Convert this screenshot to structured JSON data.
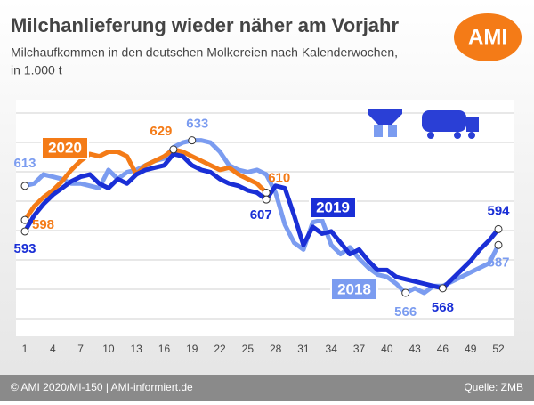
{
  "chart_data": {
    "type": "line",
    "title": "Milchanlieferung wieder näher am Vorjahr",
    "subtitle_lines": [
      "Milchaufkommen in den deutschen Molkereien nach Kalenderwochen,",
      "in 1.000 t"
    ],
    "logo": "AMI",
    "footer_left": "© AMI 2020/MI-150 | AMI-informiert.de",
    "footer_right": "Quelle: ZMB",
    "x": [
      1,
      2,
      3,
      4,
      5,
      6,
      7,
      8,
      9,
      10,
      11,
      12,
      13,
      14,
      15,
      16,
      17,
      18,
      19,
      20,
      21,
      22,
      23,
      24,
      25,
      26,
      27,
      28,
      29,
      30,
      31,
      32,
      33,
      34,
      35,
      36,
      37,
      38,
      39,
      40,
      41,
      42,
      43,
      44,
      45,
      46,
      47,
      48,
      49,
      50,
      51,
      52
    ],
    "xlim": [
      1,
      52
    ],
    "xticks": [
      1,
      4,
      7,
      10,
      13,
      16,
      19,
      22,
      25,
      28,
      31,
      34,
      37,
      40,
      43,
      46,
      49,
      52
    ],
    "ylim": [
      548,
      645
    ],
    "grid": true,
    "series": [
      {
        "name": "2018",
        "color": "#7b9cf0",
        "values": [
          613,
          614,
          618,
          617,
          616,
          614,
          614,
          613,
          612,
          620,
          616,
          619,
          620,
          622,
          624,
          625,
          630,
          632,
          633,
          633,
          632,
          628,
          622,
          620,
          619,
          620,
          618,
          610,
          596,
          588,
          585,
          597,
          598,
          587,
          583,
          586,
          581,
          577,
          574,
          573,
          570,
          566,
          568,
          566,
          569,
          569,
          571,
          573,
          575,
          577,
          579,
          587
        ]
      },
      {
        "name": "2020",
        "color": "#f47b17",
        "values": [
          598,
          604,
          608,
          611,
          615,
          620,
          624,
          627,
          626,
          628,
          628,
          626,
          618,
          622,
          624,
          626,
          629,
          628,
          626,
          624,
          622,
          620,
          621,
          618,
          616,
          614,
          610,
          null,
          null,
          null,
          null,
          null,
          null,
          null,
          null,
          null,
          null,
          null,
          null,
          null,
          null,
          null,
          null,
          null,
          null,
          null,
          null,
          null,
          null,
          null,
          null,
          null
        ]
      },
      {
        "name": "2019",
        "color": "#1a2fd6",
        "values": [
          593,
          600,
          605,
          609,
          612,
          615,
          617,
          618,
          614,
          612,
          616,
          614,
          618,
          620,
          621,
          622,
          627,
          626,
          622,
          620,
          619,
          616,
          614,
          613,
          611,
          610,
          607,
          613,
          612,
          600,
          587,
          595,
          592,
          593,
          588,
          583,
          585,
          580,
          576,
          576,
          573,
          572,
          571,
          570,
          569,
          568,
          572,
          576,
          580,
          585,
          589,
          594
        ]
      }
    ]
  }
}
